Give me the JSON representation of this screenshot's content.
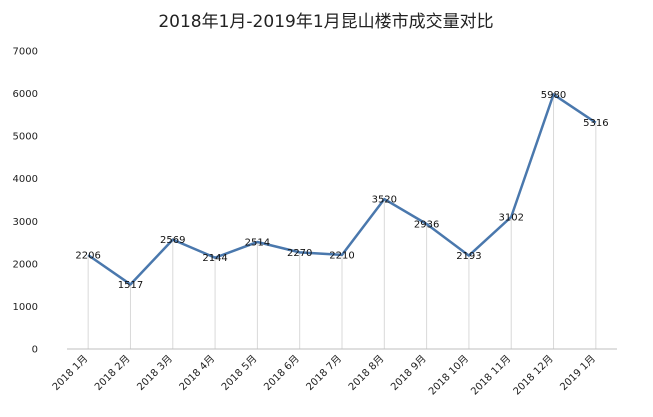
{
  "chart_data": {
    "type": "line",
    "title": "2018年1月-2019年1月昆山楼市成交量对比",
    "xlabel": "",
    "ylabel": "",
    "categories": [
      "2018 1月",
      "2018 2月",
      "2018 3月",
      "2018 4月",
      "2018 5月",
      "2018 6月",
      "2018 7月",
      "2018 8月",
      "2018 9月",
      "2018 10月",
      "2018 11月",
      "2018 12月",
      "2019 1月"
    ],
    "series": [
      {
        "values": [
          2206,
          1517,
          2569,
          2144,
          2514,
          2270,
          2210,
          3520,
          2936,
          2193,
          3102,
          5980,
          5316
        ]
      }
    ],
    "data_labels": [
      "2206",
      "1517",
      "2569",
      "2144",
      "2514",
      "2270",
      "2210",
      "3520",
      "2936",
      "2193",
      "3102",
      "5980",
      "5316"
    ],
    "ylim": [
      0,
      7000
    ],
    "yticks": [
      0,
      1000,
      2000,
      3000,
      4000,
      5000,
      6000,
      7000
    ],
    "ytick_labels": [
      "0",
      "1000",
      "2000",
      "3000",
      "4000",
      "5000",
      "6000",
      "7000"
    ],
    "grid": "vertical drop lines per category",
    "legend": "none",
    "colors": {
      "line": "#4a78ad",
      "dropline": "#d9d9d9",
      "axis": "#bfbfbf"
    }
  }
}
